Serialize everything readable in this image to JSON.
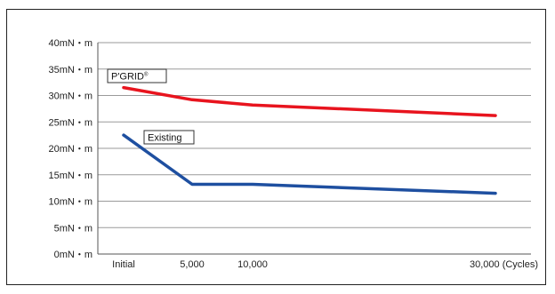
{
  "chart_data": {
    "type": "line",
    "title": "",
    "xlabel": "",
    "ylabel": "",
    "x": [
      "Initial",
      "5,000",
      "10,000",
      "30,000"
    ],
    "x_values": [
      0,
      5000,
      10000,
      30000
    ],
    "x_tick_labels": [
      "Initial",
      "5,000",
      "10,000",
      "30,000 (Cycles)"
    ],
    "y_tick_labels": [
      "0mN・m",
      "5mN・m",
      "10mN・m",
      "15mN・m",
      "20mN・m",
      "25mN・m",
      "30mN・m",
      "35mN・m",
      "40mN・m"
    ],
    "ylim": [
      0,
      40
    ],
    "grid": true,
    "legend_placement": "inline labels",
    "series": [
      {
        "name": "P'GRID",
        "name_superscript": "®",
        "color": "#e8141e",
        "values": [
          31.5,
          29.2,
          28.2,
          26.2
        ]
      },
      {
        "name": "Existing",
        "color": "#1e4fa0",
        "values": [
          22.5,
          13.2,
          13.2,
          11.5
        ]
      }
    ]
  }
}
